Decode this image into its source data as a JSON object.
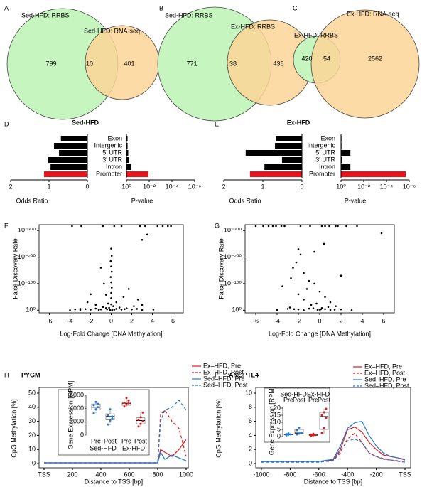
{
  "chart_data": [
    {
      "type": "venn",
      "panel": "A",
      "series": [
        {
          "name": "Sed-HFD: RRBS",
          "color": "#c6f5c0"
        },
        {
          "name": "Sed-HFD: RNA-seq",
          "color": "#fbd597"
        }
      ],
      "values": [
        799,
        10,
        401
      ]
    },
    {
      "type": "venn",
      "panel": "B",
      "series": [
        {
          "name": "Sed-HFD: RRBS",
          "color": "#c6f5c0"
        },
        {
          "name": "Ex-HFD: RRBS",
          "color": "#fbd597"
        }
      ],
      "values": [
        771,
        38,
        436
      ]
    },
    {
      "type": "venn",
      "panel": "C",
      "series": [
        {
          "name": "Ex-HFD: RRBS",
          "color": "#c6f5c0"
        },
        {
          "name": "Ex-HFD: RNA-seq",
          "color": "#fbd597"
        }
      ],
      "values": [
        420,
        54,
        2562
      ]
    },
    {
      "type": "or_pvalue",
      "panel": "D",
      "title": "Sed-HFD",
      "categories": [
        "Exon",
        "Intergenic",
        "5' UTR",
        "3' UTR",
        "Intron",
        "Promoter"
      ],
      "colors": [
        "#000000",
        "#000000",
        "#000000",
        "#000000",
        "#000000",
        "#e8141b"
      ],
      "odds_ratio": {
        "label": "Odds Ratio",
        "values": [
          0.69,
          0.87,
          0.74,
          1.02,
          0.96,
          1.13
        ],
        "xlim": [
          2,
          0
        ],
        "xticks": [
          2,
          1,
          0
        ]
      },
      "p_value": {
        "label": "P-value",
        "log": true,
        "values": [
          0.8,
          0.8,
          0.7,
          0.6,
          0.4,
          0.012
        ],
        "xlim": [
          1,
          1e-06
        ],
        "xticks": [
          {
            "value": 1,
            "label": "10⁰"
          },
          {
            "value": 0.01,
            "label": "10⁻²"
          },
          {
            "value": 0.0001,
            "label": "10⁻⁴"
          },
          {
            "value": 1e-06,
            "label": "10⁻⁶"
          }
        ]
      }
    },
    {
      "type": "or_pvalue",
      "panel": "E",
      "title": "Ex-HFD",
      "categories": [
        "Exon",
        "Intergenic",
        "5' UTR",
        "3' UTR",
        "Intron",
        "Promoter"
      ],
      "colors": [
        "#000000",
        "#000000",
        "#000000",
        "#000000",
        "#000000",
        "#e8141b"
      ],
      "odds_ratio": {
        "label": "Odds Ratio",
        "values": [
          0.67,
          0.69,
          1.44,
          0.51,
          0.96,
          1.33
        ],
        "xlim": [
          2,
          0
        ],
        "xticks": [
          2,
          1,
          0
        ]
      },
      "p_value": {
        "label": "P-value",
        "log": true,
        "values": [
          0.9,
          0.9,
          0.15,
          0.8,
          0.15,
          2e-06
        ],
        "xlim": [
          1,
          1e-06
        ],
        "xticks": [
          {
            "value": 1,
            "label": "10⁰"
          },
          {
            "value": 0.01,
            "label": "10⁻²"
          },
          {
            "value": 0.0001,
            "label": "10⁻⁴"
          },
          {
            "value": 1e-06,
            "label": "10⁻⁶"
          }
        ]
      }
    },
    {
      "type": "scatter",
      "panel": "F",
      "xlabel": "Log-Fold Change [DNA Methylation]",
      "ylabel": "False Discovery Rate",
      "color": "#000000",
      "log_y": true,
      "xlim": [
        -7,
        7
      ],
      "xticks": [
        -6,
        -4,
        -2,
        0,
        2,
        4,
        6
      ],
      "ylim": [
        10000000000.0,
        1e-322
      ],
      "yticks": [
        {
          "value": 1,
          "label": "10⁰"
        },
        {
          "value": 1e-100,
          "label": "10⁻¹⁰⁰"
        },
        {
          "value": 1e-200,
          "label": "10⁻²⁰⁰"
        },
        {
          "value": 1e-300,
          "label": "10⁻³⁰⁰"
        }
      ],
      "x": [
        -3.8,
        -2.9,
        -0.8,
        0.3,
        1.0,
        2.8,
        3.3,
        4.5,
        5.0,
        5.5,
        5.8,
        3.5,
        3.0,
        0,
        0.05,
        -0.05,
        0,
        -1.0,
        0.05,
        -0.05,
        0,
        -0.7,
        0.05,
        1.7,
        0,
        -2.0,
        -0.5,
        1.2,
        0,
        2.6,
        -2.3,
        0.5,
        -0.3,
        0,
        3.0,
        -1.5,
        2.2,
        0.2,
        -0.8,
        0.8,
        -0.2,
        -0.5,
        1.5,
        -1.5,
        0.5,
        2.5,
        -3,
        -2.5,
        1.3,
        -3.5,
        -1,
        2,
        -2,
        1,
        -3,
        3,
        -1.2,
        0.1,
        -0.1,
        0.3,
        -0.4,
        4.1,
        -4
      ],
      "values": [
        1e-317,
        1e-317,
        1e-317,
        1e-317,
        1e-317,
        1e-317,
        1e-317,
        1e-317,
        1e-317,
        1e-317,
        1e-317,
        1e-285,
        1e-265,
        1e-232,
        1e-205,
        1e-185,
        1e-165,
        1e-160,
        1e-145,
        1e-125,
        1e-105,
        1e-100,
        1e-85,
        1e-80,
        1e-65,
        1e-60,
        1e-58,
        1e-50,
        1e-45,
        1e-40,
        1e-30,
        1e-30,
        1e-25,
        1e-22,
        1e-20,
        1e-20,
        1e-15,
        1e-15,
        1e-12,
        1e-10,
        1e-09,
        1e-08,
        1e-07,
        1e-06,
        1e-05,
        1e-05,
        1e-05,
        0.0001,
        0.0001,
        0.001,
        0.001,
        0.001,
        0.01,
        0.01,
        0.1,
        0.1,
        0.1,
        1,
        0.1,
        0.01,
        0.001,
        0.01,
        1
      ]
    },
    {
      "type": "scatter",
      "panel": "G",
      "xlabel": "Log-Fold Change [DNA Methylation]",
      "ylabel": "False Discovery Rate",
      "color": "#000000",
      "log_y": true,
      "xlim": [
        -7,
        7
      ],
      "xticks": [
        -6,
        -4,
        -2,
        0,
        2,
        4,
        6
      ],
      "ylim": [
        10000000000.0,
        1e-322
      ],
      "yticks": [
        {
          "value": 1,
          "label": "10⁰"
        },
        {
          "value": 1e-100,
          "label": "10⁻¹⁰⁰"
        },
        {
          "value": 1e-200,
          "label": "10⁻²⁰⁰"
        },
        {
          "value": 1e-300,
          "label": "10⁻³⁰⁰"
        }
      ],
      "x": [
        -6,
        -5.3,
        -4.8,
        -4.4,
        -4.1,
        -3.6,
        -3.3,
        -1.8,
        -0.9,
        0.2,
        0.5,
        0.9,
        1.5,
        1.7,
        2.5,
        3.5,
        5.8,
        0.4,
        -2,
        -0.5,
        -1.8,
        -2.2,
        -2.5,
        -1.5,
        2,
        -2.7,
        -1,
        -0.5,
        -3.5,
        -1.2,
        0,
        -2,
        0.5,
        -1.5,
        1,
        -0.8,
        1.5,
        -2.8,
        -0.3,
        0.8,
        -3,
        -2,
        -1,
        0,
        0.5,
        1,
        2,
        -4,
        -1.5,
        0.2,
        -0.6,
        1.4,
        -2.4,
        3,
        -0.2,
        0.1
      ],
      "values": [
        1e-317,
        1e-317,
        1e-317,
        1e-317,
        1e-317,
        1e-317,
        1e-317,
        1e-317,
        1e-317,
        1e-317,
        1e-317,
        1e-317,
        1e-317,
        1e-317,
        1e-317,
        1e-317,
        1e-290,
        1e-250,
        1e-230,
        1e-220,
        1e-210,
        1e-180,
        1e-160,
        1e-140,
        1e-130,
        1e-120,
        1e-110,
        1e-100,
        1e-90,
        1e-80,
        1e-70,
        1e-60,
        1e-50,
        1e-40,
        1e-30,
        1e-20,
        1e-15,
        1e-10,
        1e-25,
        1e-12,
        1e-05,
        0.001,
        1e-06,
        0.01,
        0.0001,
        0.1,
        0.001,
        0.1,
        1,
        1e-08,
        1e-07,
        0.01,
        0.0001,
        1,
        0.1,
        0.001
      ]
    },
    {
      "type": "line",
      "panel": "H",
      "title": "PYGM",
      "xlabel": "Distance to TSS [bp]",
      "ylabel": "CpG Methylation [%]",
      "legend": "top-right",
      "x": [
        0,
        800,
        820,
        850,
        900,
        950,
        1000
      ],
      "xlim": [
        0,
        1000
      ],
      "xticks": [
        {
          "value": 0,
          "label": "TSS"
        },
        200,
        400,
        600,
        800,
        1000
      ],
      "ylim": [
        0,
        50
      ],
      "yticks": [
        0,
        10,
        20,
        30,
        40,
        50
      ],
      "series": [
        {
          "name": "Ex–HFD, Pre",
          "color": "#e41a1c",
          "dashed": false,
          "values": [
            0.5,
            0.5,
            10,
            8,
            5,
            10,
            17
          ]
        },
        {
          "name": "Ex–HFD, Post",
          "color": "#e41a1c",
          "dashed": true,
          "values": [
            0.5,
            0.5,
            35,
            38,
            30,
            25,
            5
          ]
        },
        {
          "name": "Sed–HFD, Pre",
          "color": "#1f78d4",
          "dashed": false,
          "values": [
            0.5,
            0.5,
            8,
            3,
            6,
            4,
            2
          ]
        },
        {
          "name": "Sed–HFD, Post",
          "color": "#1f78d4",
          "dashed": true,
          "values": [
            0.5,
            0.5,
            30,
            38,
            40,
            45,
            38
          ]
        }
      ],
      "inset": {
        "type": "box",
        "ylabel": "Gene Expression [RPM]",
        "groups": [
          "Sed-HFD",
          "Ex-HFD"
        ],
        "categories": [
          "Pre",
          "Post",
          "Pre",
          "Post"
        ],
        "colors": [
          "#1f78d4",
          "#1f78d4",
          "#e41a1c",
          "#e41a1c"
        ],
        "ylim": [
          0,
          6000
        ],
        "yticks": [
          0,
          2000,
          4000,
          6000
        ],
        "boxes": [
          {
            "min": 3300,
            "q1": 3800,
            "median": 4200,
            "q3": 4700,
            "max": 5100
          },
          {
            "min": 1500,
            "q1": 2300,
            "median": 2800,
            "q3": 3200,
            "max": 3900
          },
          {
            "min": 4200,
            "q1": 4500,
            "median": 4800,
            "q3": 5000,
            "max": 5600
          },
          {
            "min": 1300,
            "q1": 1700,
            "median": 2200,
            "q3": 2600,
            "max": 3400
          }
        ],
        "points": [
          [
            3300,
            3900,
            4200,
            4500,
            5000,
            4700
          ],
          [
            1600,
            2200,
            2800,
            3000,
            3900,
            2500
          ],
          [
            4300,
            4600,
            4800,
            4900,
            5600,
            5200
          ],
          [
            1300,
            1700,
            2100,
            2300,
            2700,
            3400
          ]
        ]
      }
    },
    {
      "type": "line",
      "panel": "I",
      "title": "ANGPTL4",
      "xlabel": "Distance to TSS [bp]",
      "ylabel": "CpG Methylation [%]",
      "legend": "top-right",
      "x": [
        -1000,
        -600,
        -500,
        -450,
        -400,
        -350,
        -300,
        -250,
        -200,
        -150,
        -100,
        -50,
        0
      ],
      "xlim": [
        -1000,
        0
      ],
      "xticks": [
        -1000,
        -800,
        -600,
        -400,
        -200,
        {
          "value": 0,
          "label": "TSS"
        }
      ],
      "ylim": [
        0,
        10
      ],
      "yticks": [
        0,
        2,
        4,
        6,
        8,
        10
      ],
      "series": [
        {
          "name": "Ex–HFD, Pre",
          "color": "#e41a1c",
          "dashed": false,
          "values": [
            0.3,
            0.3,
            0.5,
            2,
            4.8,
            5.2,
            4.5,
            3,
            2,
            1.2,
            1,
            0.8,
            0.6
          ]
        },
        {
          "name": "Ex–HFD, Post",
          "color": "#e41a1c",
          "dashed": true,
          "values": [
            0.2,
            0.2,
            0.4,
            1.5,
            3.5,
            4.3,
            3,
            1.5,
            1,
            0.7,
            0.5,
            0.4,
            0.3
          ]
        },
        {
          "name": "Sed–HFD, Pre",
          "color": "#1f78d4",
          "dashed": false,
          "values": [
            0.3,
            0.3,
            0.6,
            2.5,
            5,
            5.8,
            6,
            4,
            2.5,
            1.5,
            1,
            0.8,
            0.5
          ]
        },
        {
          "name": "Sed–HFD, Post",
          "color": "#1f78d4",
          "dashed": true,
          "values": [
            0.2,
            0.2,
            0.4,
            1.8,
            3.2,
            3.5,
            3,
            1.5,
            1,
            0.6,
            0.5,
            0.3,
            0.2
          ]
        }
      ],
      "inset": {
        "type": "box",
        "ylabel": "Gene Expression [RPM]",
        "groups": [
          "Sed-HFD",
          "Ex-HFD"
        ],
        "categories": [
          "Pre",
          "Post",
          "Pre",
          "Post"
        ],
        "colors": [
          "#1f78d4",
          "#1f78d4",
          "#e41a1c",
          "#e41a1c"
        ],
        "ylim": [
          0,
          21
        ],
        "yticks": [
          0,
          5,
          10,
          15,
          20
        ],
        "boxes": [
          {
            "min": 0.8,
            "q1": 1.2,
            "median": 1.5,
            "q3": 1.8,
            "max": 2.3
          },
          {
            "min": 1,
            "q1": 2,
            "median": 2.5,
            "q3": 5,
            "max": 6.5
          },
          {
            "min": 0.3,
            "q1": 0.8,
            "median": 1,
            "q3": 1.5,
            "max": 2
          },
          {
            "min": 2,
            "q1": 5,
            "median": 14,
            "q3": 17,
            "max": 20
          }
        ],
        "points": [
          [
            0.9,
            1.3,
            1.5,
            1.7,
            2.2
          ],
          [
            1.5,
            2.2,
            2.5,
            4.5,
            6.3
          ],
          [
            0.4,
            0.9,
            1.1,
            1.4,
            1.9
          ],
          [
            2.5,
            6,
            13,
            15,
            17,
            19.5
          ]
        ]
      }
    }
  ]
}
